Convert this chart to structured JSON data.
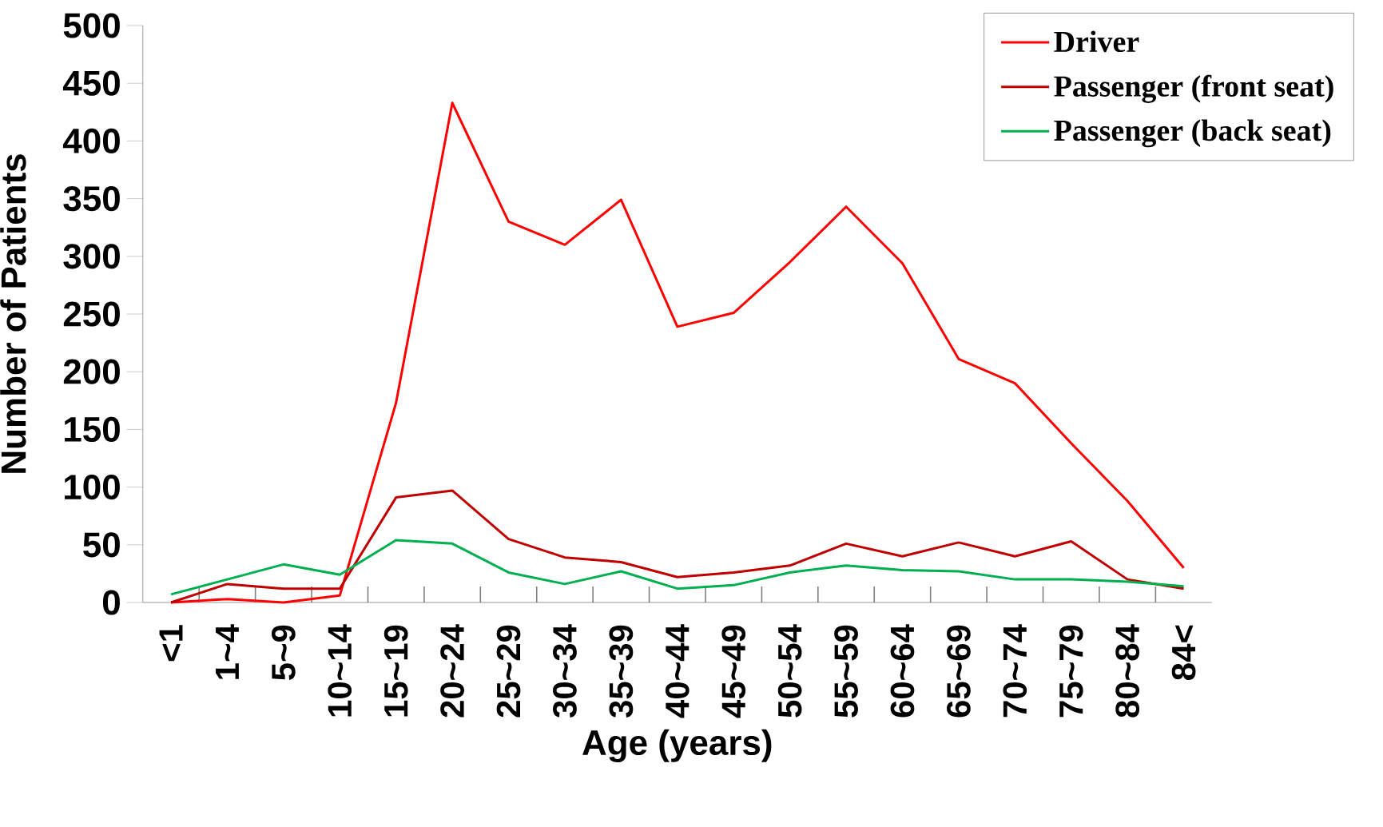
{
  "chart_data": {
    "type": "line",
    "xlabel": "Age (years)",
    "ylabel": "Number of Patients",
    "categories": [
      "<1",
      "1~4",
      "5~9",
      "10~14",
      "15~19",
      "20~24",
      "25~29",
      "30~34",
      "35~39",
      "40~44",
      "45~49",
      "50~54",
      "55~59",
      "60~64",
      "65~69",
      "70~74",
      "75~79",
      "80~84",
      "84<"
    ],
    "series": [
      {
        "name": "Driver",
        "color": "#ff0000",
        "values": [
          0,
          3,
          0,
          6,
          173,
          433,
          330,
          310,
          349,
          239,
          251,
          295,
          343,
          294,
          211,
          190,
          138,
          88,
          30
        ]
      },
      {
        "name": "Passenger (front seat)",
        "color": "#c00000",
        "values": [
          0,
          16,
          12,
          12,
          91,
          97,
          55,
          39,
          35,
          22,
          26,
          32,
          51,
          40,
          52,
          40,
          53,
          20,
          12
        ]
      },
      {
        "name": "Passenger (back seat)",
        "color": "#00b050",
        "values": [
          7,
          20,
          33,
          24,
          54,
          51,
          26,
          16,
          27,
          12,
          15,
          26,
          32,
          28,
          27,
          20,
          20,
          18,
          14
        ]
      }
    ],
    "ylim": [
      0,
      500
    ],
    "yticks": [
      0,
      50,
      100,
      150,
      200,
      250,
      300,
      350,
      400,
      450,
      500
    ],
    "grid": false,
    "legend": "top right",
    "marker": "none",
    "line_style": "solid"
  }
}
